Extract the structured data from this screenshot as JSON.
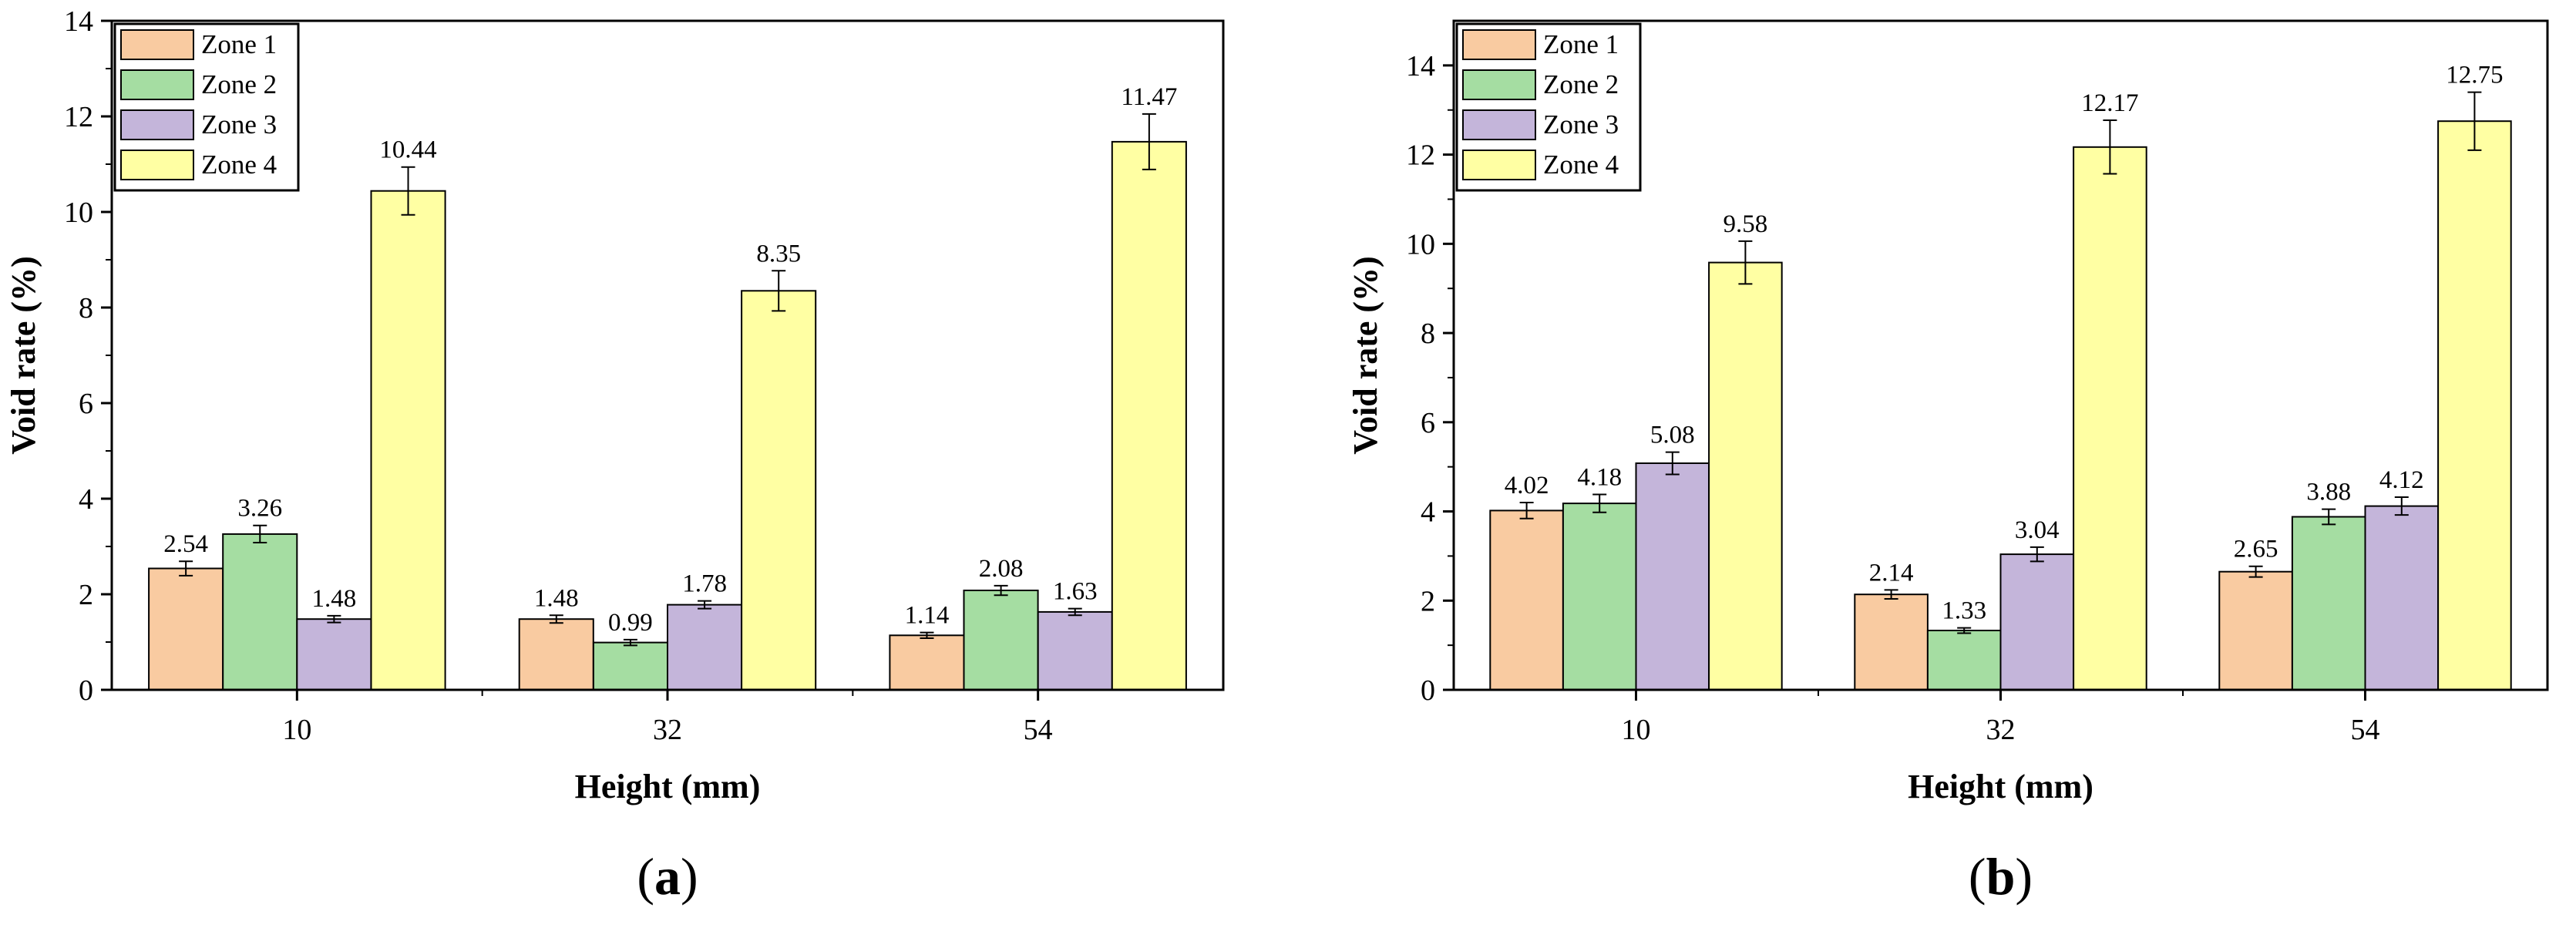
{
  "chart_data": [
    {
      "type": "bar",
      "panel_label": "a",
      "categories": [
        "10",
        "32",
        "54"
      ],
      "series": [
        {
          "name": "Zone 1",
          "values": [
            2.54,
            1.48,
            1.14
          ],
          "errors": [
            0.15,
            0.08,
            0.06
          ]
        },
        {
          "name": "Zone 2",
          "values": [
            3.26,
            0.99,
            2.08
          ],
          "errors": [
            0.18,
            0.06,
            0.1
          ]
        },
        {
          "name": "Zone 3",
          "values": [
            1.48,
            1.78,
            1.63
          ],
          "errors": [
            0.07,
            0.08,
            0.07
          ]
        },
        {
          "name": "Zone 4",
          "values": [
            10.44,
            8.35,
            11.47
          ],
          "errors": [
            0.5,
            0.42,
            0.58
          ]
        }
      ],
      "xlabel": "Height (mm)",
      "ylabel": "Void rate (%)",
      "ylim": [
        0,
        14
      ],
      "yticks": [
        0,
        2,
        4,
        6,
        8,
        10,
        12,
        14
      ],
      "legend": "top-left",
      "grid": false
    },
    {
      "type": "bar",
      "panel_label": "b",
      "categories": [
        "10",
        "32",
        "54"
      ],
      "series": [
        {
          "name": "Zone 1",
          "values": [
            4.02,
            2.14,
            2.65
          ],
          "errors": [
            0.18,
            0.1,
            0.12
          ]
        },
        {
          "name": "Zone 2",
          "values": [
            4.18,
            1.33,
            3.88
          ],
          "errors": [
            0.2,
            0.06,
            0.17
          ]
        },
        {
          "name": "Zone 3",
          "values": [
            5.08,
            3.04,
            4.12
          ],
          "errors": [
            0.25,
            0.16,
            0.2
          ]
        },
        {
          "name": "Zone 4",
          "values": [
            9.58,
            12.17,
            12.75
          ],
          "errors": [
            0.48,
            0.6,
            0.65
          ]
        }
      ],
      "xlabel": "Height (mm)",
      "ylabel": "Void rate (%)",
      "ylim": [
        0,
        15
      ],
      "yticks": [
        0,
        2,
        4,
        6,
        8,
        10,
        12,
        14
      ],
      "legend": "top-left",
      "grid": false
    }
  ],
  "colors": {
    "zone1": "#F9CBA1",
    "zone2": "#A5DDA2",
    "zone3": "#C4B5DA",
    "zone4": "#FFFFA3",
    "axis": "#000000"
  }
}
